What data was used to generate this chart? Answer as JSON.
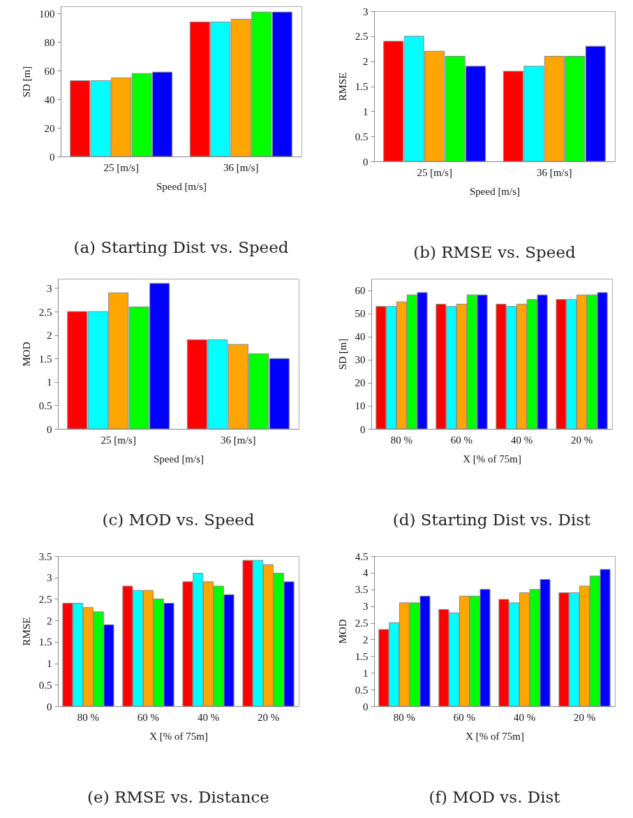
{
  "chart_data": [
    {
      "type": "bar",
      "title": "(a) Starting Dist vs. Speed",
      "xlabel": "Speed [m/s]",
      "ylabel": "SD [m]",
      "categories": [
        "25 [m/s]",
        "36 [m/s]"
      ],
      "ylim": [
        0,
        105
      ],
      "yticks": [
        0,
        20,
        40,
        60,
        80,
        100
      ],
      "series": [
        {
          "color": "#ff0000",
          "values": [
            53,
            94
          ]
        },
        {
          "color": "#00ffff",
          "values": [
            53,
            94
          ]
        },
        {
          "color": "#ffa500",
          "values": [
            55,
            96
          ]
        },
        {
          "color": "#00ff00",
          "values": [
            58,
            101
          ]
        },
        {
          "color": "#0000ff",
          "values": [
            59,
            101
          ]
        }
      ]
    },
    {
      "type": "bar",
      "title": "(b) RMSE vs. Speed",
      "xlabel": "Speed [m/s]",
      "ylabel": "RMSE",
      "categories": [
        "25 [m/s]",
        "36 [m/s]"
      ],
      "ylim": [
        0,
        3
      ],
      "yticks": [
        0,
        0.5,
        1,
        1.5,
        2,
        2.5,
        3
      ],
      "series": [
        {
          "color": "#ff0000",
          "values": [
            2.4,
            1.8
          ]
        },
        {
          "color": "#00ffff",
          "values": [
            2.5,
            1.9
          ]
        },
        {
          "color": "#ffa500",
          "values": [
            2.2,
            2.1
          ]
        },
        {
          "color": "#00ff00",
          "values": [
            2.1,
            2.1
          ]
        },
        {
          "color": "#0000ff",
          "values": [
            1.9,
            2.3
          ]
        }
      ]
    },
    {
      "type": "bar",
      "title": "(c) MOD vs. Speed",
      "xlabel": "Speed [m/s]",
      "ylabel": "MOD",
      "categories": [
        "25 [m/s]",
        "36 [m/s]"
      ],
      "ylim": [
        0,
        3.2
      ],
      "yticks": [
        0,
        0.5,
        1,
        1.5,
        2,
        2.5,
        3
      ],
      "series": [
        {
          "color": "#ff0000",
          "values": [
            2.5,
            1.9
          ]
        },
        {
          "color": "#00ffff",
          "values": [
            2.5,
            1.9
          ]
        },
        {
          "color": "#ffa500",
          "values": [
            2.9,
            1.8
          ]
        },
        {
          "color": "#00ff00",
          "values": [
            2.6,
            1.6
          ]
        },
        {
          "color": "#0000ff",
          "values": [
            3.1,
            1.5
          ]
        }
      ]
    },
    {
      "type": "bar",
      "title": "(d) Starting Dist vs. Dist",
      "xlabel": "X [% of 75m]",
      "ylabel": "SD [m]",
      "categories": [
        "80 %",
        "60 %",
        "40 %",
        "20 %"
      ],
      "ylim": [
        0,
        65
      ],
      "yticks": [
        0,
        10,
        20,
        30,
        40,
        50,
        60
      ],
      "series": [
        {
          "color": "#ff0000",
          "values": [
            53,
            54,
            54,
            56
          ]
        },
        {
          "color": "#00ffff",
          "values": [
            53,
            53,
            53,
            56
          ]
        },
        {
          "color": "#ffa500",
          "values": [
            55,
            54,
            54,
            58
          ]
        },
        {
          "color": "#00ff00",
          "values": [
            58,
            58,
            56,
            58
          ]
        },
        {
          "color": "#0000ff",
          "values": [
            59,
            58,
            58,
            59
          ]
        }
      ]
    },
    {
      "type": "bar",
      "title": "(e) RMSE vs. Distance",
      "xlabel": "X [% of 75m]",
      "ylabel": "RMSE",
      "categories": [
        "80 %",
        "60 %",
        "40 %",
        "20 %"
      ],
      "ylim": [
        0,
        3.5
      ],
      "yticks": [
        0,
        0.5,
        1,
        1.5,
        2,
        2.5,
        3,
        3.5
      ],
      "series": [
        {
          "color": "#ff0000",
          "values": [
            2.4,
            2.8,
            2.9,
            3.4
          ]
        },
        {
          "color": "#00ffff",
          "values": [
            2.4,
            2.7,
            3.1,
            3.4
          ]
        },
        {
          "color": "#ffa500",
          "values": [
            2.3,
            2.7,
            2.9,
            3.3
          ]
        },
        {
          "color": "#00ff00",
          "values": [
            2.2,
            2.5,
            2.8,
            3.1
          ]
        },
        {
          "color": "#0000ff",
          "values": [
            1.9,
            2.4,
            2.6,
            2.9
          ]
        }
      ]
    },
    {
      "type": "bar",
      "title": "(f) MOD vs. Dist",
      "xlabel": "X [% of 75m]",
      "ylabel": "MOD",
      "categories": [
        "80 %",
        "60 %",
        "40 %",
        "20 %"
      ],
      "ylim": [
        0,
        4.5
      ],
      "yticks": [
        0,
        0.5,
        1,
        1.5,
        2,
        2.5,
        3,
        3.5,
        4,
        4.5
      ],
      "series": [
        {
          "color": "#ff0000",
          "values": [
            2.3,
            2.9,
            3.2,
            3.4
          ]
        },
        {
          "color": "#00ffff",
          "values": [
            2.5,
            2.8,
            3.1,
            3.4
          ]
        },
        {
          "color": "#ffa500",
          "values": [
            3.1,
            3.3,
            3.4,
            3.6
          ]
        },
        {
          "color": "#00ff00",
          "values": [
            3.1,
            3.3,
            3.5,
            3.9
          ]
        },
        {
          "color": "#0000ff",
          "values": [
            3.3,
            3.5,
            3.8,
            4.1
          ]
        }
      ]
    }
  ]
}
